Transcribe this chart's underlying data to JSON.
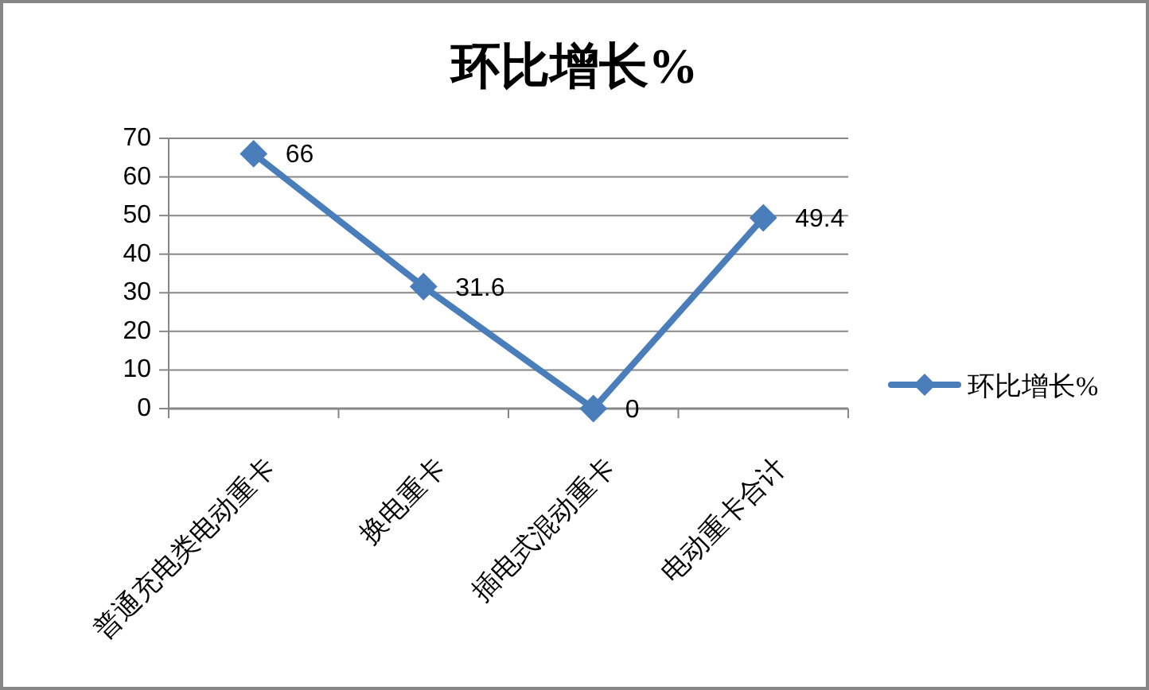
{
  "chart_data": {
    "type": "line",
    "title": "环比增长%",
    "categories": [
      "普通充电类电动重卡",
      "换电重卡",
      "插电式混动重卡",
      "电动重卡合计"
    ],
    "series": [
      {
        "name": "环比增长%",
        "color": "#4a7ebb",
        "values": [
          66,
          31.6,
          0,
          49.4
        ]
      }
    ],
    "ylim": [
      0,
      70
    ],
    "yticks": [
      0,
      10,
      20,
      30,
      40,
      50,
      60,
      70
    ],
    "grid": "y",
    "legend": "right",
    "marker": "diamond",
    "line_style": "solid",
    "data_labels": true
  }
}
